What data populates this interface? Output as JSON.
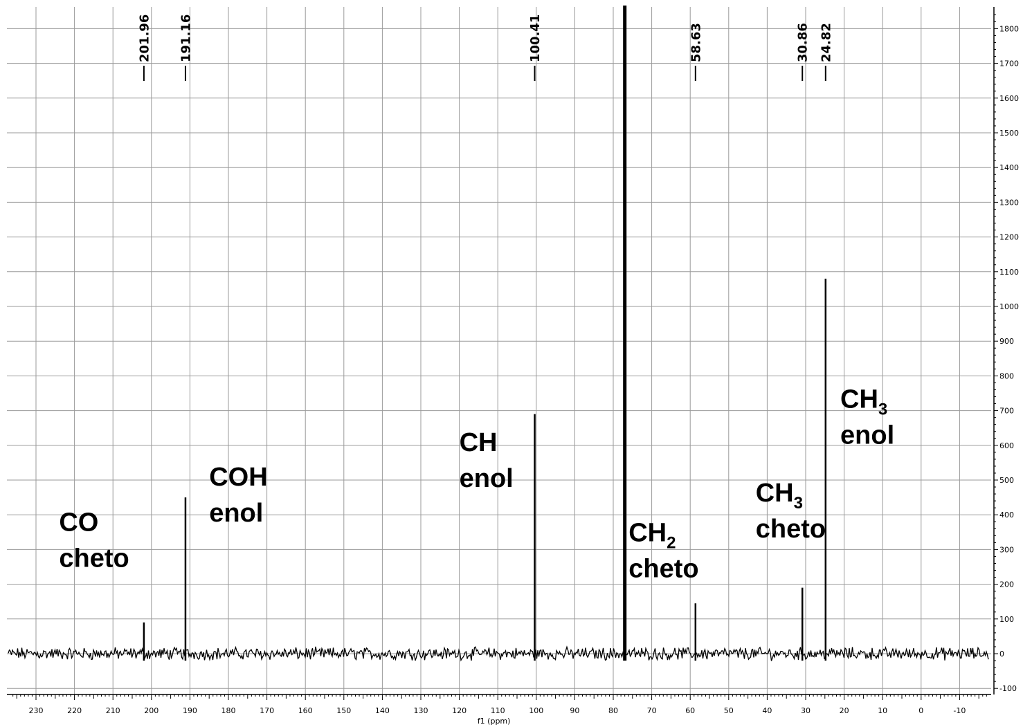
{
  "chart_data": {
    "type": "line",
    "xlabel": "f1 (ppm)",
    "ylabel": "",
    "xlim": [
      236,
      -17
    ],
    "ylim": [
      -100,
      1850
    ],
    "grid": true,
    "x_ticks": [
      230,
      220,
      210,
      200,
      190,
      180,
      170,
      160,
      150,
      140,
      130,
      120,
      110,
      100,
      90,
      80,
      70,
      60,
      50,
      40,
      30,
      20,
      10,
      0,
      -10
    ],
    "y_ticks": [
      -100,
      0,
      100,
      200,
      300,
      400,
      500,
      600,
      700,
      800,
      900,
      1000,
      1100,
      1200,
      1300,
      1400,
      1500,
      1600,
      1700,
      1800
    ],
    "peaks": [
      {
        "ppm": 201.96,
        "height": 90,
        "label": "201.96"
      },
      {
        "ppm": 191.16,
        "height": 450,
        "label": "191.16"
      },
      {
        "ppm": 100.41,
        "height": 690,
        "label": "100.41"
      },
      {
        "ppm": 77.0,
        "height": 1900,
        "label": ""
      },
      {
        "ppm": 58.63,
        "height": 145,
        "label": "58.63"
      },
      {
        "ppm": 30.86,
        "height": 190,
        "label": "30.86"
      },
      {
        "ppm": 24.82,
        "height": 1080,
        "label": "24.82"
      }
    ],
    "annotations": [
      {
        "line1": "CO",
        "line1_sub": "",
        "line2": "cheto",
        "ppm": 224,
        "value": 250
      },
      {
        "line1": "COH",
        "line1_sub": "",
        "line2": "enol",
        "ppm": 185,
        "value": 380
      },
      {
        "line1": "CH",
        "line1_sub": "",
        "line2": "enol",
        "ppm": 120,
        "value": 480
      },
      {
        "line1": "CH",
        "line1_sub": "2",
        "line2": "cheto",
        "ppm": 76,
        "value": 220
      },
      {
        "line1": "CH",
        "line1_sub": "3",
        "line2": "cheto",
        "ppm": 43,
        "value": 335
      },
      {
        "line1": "CH",
        "line1_sub": "3",
        "line2": "enol",
        "ppm": 21,
        "value": 605
      }
    ]
  }
}
